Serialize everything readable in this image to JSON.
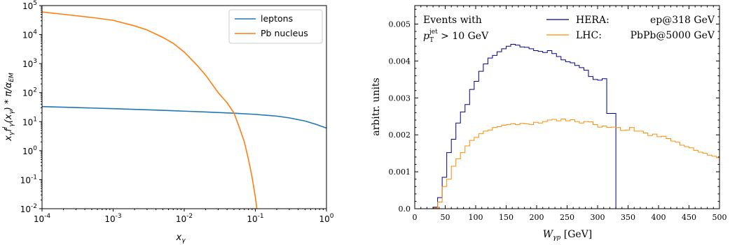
{
  "chart_data": [
    {
      "type": "line",
      "xscale": "log",
      "yscale": "log",
      "xlim": [
        0.0001,
        1
      ],
      "ylim": [
        0.01,
        100000
      ],
      "xlabel": "x_γ",
      "ylabel": "x_γ f_γ^l(x_γ) * π/α_EM",
      "xticks": [
        "10^-4",
        "10^-3",
        "10^-2",
        "10^-1",
        "10^0"
      ],
      "yticks": [
        "10^-2",
        "10^-1",
        "10^0",
        "10^1",
        "10^2",
        "10^3",
        "10^4",
        "10^5"
      ],
      "legend": "top-right",
      "series": [
        {
          "name": "leptons",
          "color": "#1f77b4",
          "x": [
            0.0001,
            0.0002,
            0.0005,
            0.001,
            0.002,
            0.005,
            0.01,
            0.02,
            0.05,
            0.1,
            0.2,
            0.3,
            0.5,
            0.7,
            1.0
          ],
          "y": [
            33,
            31.5,
            29.5,
            28,
            26.5,
            24.5,
            23,
            21.5,
            19.5,
            17.8,
            15.5,
            13.5,
            10.5,
            8.2,
            6.0
          ]
        },
        {
          "name": "Pb nucleus",
          "color": "#ff7f0e",
          "x": [
            0.0001,
            0.0002,
            0.0005,
            0.001,
            0.002,
            0.003,
            0.005,
            0.007,
            0.01,
            0.015,
            0.02,
            0.03,
            0.04,
            0.05,
            0.06,
            0.07,
            0.08,
            0.09,
            0.1,
            0.105
          ],
          "y": [
            60000,
            50000,
            39000,
            31000,
            20000,
            14500,
            8000,
            5000,
            2500,
            900,
            400,
            100,
            45,
            20,
            6,
            2,
            0.5,
            0.12,
            0.025,
            0.01
          ]
        }
      ]
    },
    {
      "type": "line",
      "step": true,
      "xlim": [
        0,
        500
      ],
      "ylim": [
        0,
        0.0055
      ],
      "xlabel": "W_γp [GeV]",
      "ylabel": "arbitr. units",
      "xticks": [
        0,
        50,
        100,
        150,
        200,
        250,
        300,
        350,
        400,
        450,
        500
      ],
      "yticks": [
        "0.0",
        "0.001",
        "0.002",
        "0.003",
        "0.004",
        "0.005"
      ],
      "annotation": {
        "line1": "Events with",
        "line2": "p_T^jet > 10 GeV"
      },
      "legend": "top-right",
      "series": [
        {
          "name_left": "HERA:",
          "name_right": "ep@318 GeV",
          "color": "#00008b",
          "bin_width": 7.5,
          "x_start": 0,
          "values": [
            0,
            0,
            0,
            0,
            4e-05,
            0.0003,
            0.00085,
            0.00152,
            0.00188,
            0.00232,
            0.00262,
            0.00282,
            0.00323,
            0.00345,
            0.00372,
            0.00392,
            0.00408,
            0.00415,
            0.00425,
            0.00433,
            0.0044,
            0.00445,
            0.00443,
            0.00438,
            0.00437,
            0.00433,
            0.00428,
            0.00426,
            0.00423,
            0.00428,
            0.0042,
            0.00412,
            0.00403,
            0.00398,
            0.00395,
            0.00388,
            0.00382,
            0.00375,
            0.00358,
            0.0035,
            0.00348,
            0.00352,
            0.00258,
            0.00258,
            0
          ]
        },
        {
          "name_left": "LHC:",
          "name_right": "PbPb@5000 GeV",
          "color": "#ff8c00",
          "bin_width": 7.5,
          "x_start": 0,
          "values": [
            0,
            0,
            0,
            0,
            2e-05,
            0.00018,
            0.0006,
            0.0008,
            0.00115,
            0.00135,
            0.00152,
            0.0017,
            0.00185,
            0.00193,
            0.00203,
            0.0021,
            0.00213,
            0.0022,
            0.00222,
            0.00226,
            0.00228,
            0.0023,
            0.00228,
            0.00231,
            0.0023,
            0.00228,
            0.00234,
            0.00232,
            0.00236,
            0.0024,
            0.00242,
            0.00238,
            0.00243,
            0.00238,
            0.00241,
            0.00236,
            0.00232,
            0.00236,
            0.00235,
            0.00228,
            0.00221,
            0.00224,
            0.0022,
            0.00221,
            0.0022,
            0.00212,
            0.00213,
            0.0022,
            0.0021,
            0.0021,
            0.00205,
            0.00198,
            0.00202,
            0.00195,
            0.00196,
            0.0019,
            0.00183,
            0.0018,
            0.00172,
            0.00168,
            0.00165,
            0.00158,
            0.00153,
            0.0015,
            0.00145,
            0.00142,
            0.00138,
            0.00139,
            0.00128,
            0.00121
          ]
        }
      ]
    }
  ]
}
